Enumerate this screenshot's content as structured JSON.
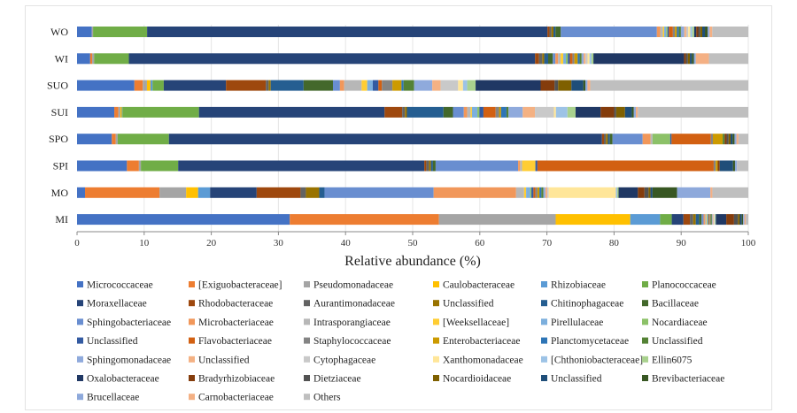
{
  "chart_data": {
    "type": "bar",
    "orientation": "horizontal",
    "stacked": true,
    "xlabel": "Relative abundance (%)",
    "xlim": [
      0,
      100
    ],
    "xticks": [
      0,
      10,
      20,
      30,
      40,
      50,
      60,
      70,
      80,
      90,
      100
    ],
    "categories": [
      "WO",
      "WI",
      "SUO",
      "SUI",
      "SPO",
      "SPI",
      "MO",
      "MI"
    ],
    "series": [
      {
        "name": "Micrococcaceae",
        "color": "#4472C4",
        "values": [
          2.2,
          2.0,
          8.2,
          5.5,
          5.3,
          7.5,
          1.2,
          32.8
        ]
      },
      {
        "name": "[Exiguobacteraceae]",
        "color": "#ED7D31",
        "values": [
          0.0,
          0.3,
          1.2,
          0.6,
          0.6,
          1.8,
          11.2,
          23.0
        ]
      },
      {
        "name": "Pseudomonadaceae",
        "color": "#A5A5A5",
        "values": [
          0.2,
          0.3,
          0.6,
          0.3,
          0.3,
          0.3,
          4.0,
          18.0
        ]
      },
      {
        "name": "Caulobacteraceae",
        "color": "#FFC000",
        "values": [
          0.0,
          0.0,
          0.5,
          0.2,
          0.0,
          0.0,
          1.8,
          11.5
        ]
      },
      {
        "name": "Rhizobiaceae",
        "color": "#5B9BD5",
        "values": [
          0.0,
          0.0,
          0.3,
          0.1,
          0.0,
          0.0,
          1.8,
          4.6
        ]
      },
      {
        "name": "Planococcaceae",
        "color": "#70AD47",
        "values": [
          8.1,
          5.3,
          1.6,
          11.3,
          7.8,
          5.6,
          0.0,
          1.8
        ]
      },
      {
        "name": "Moraxellaceae",
        "color": "#264478",
        "values": [
          60.0,
          61.9,
          8.9,
          27.4,
          66.0,
          37.0,
          7.0,
          1.8
        ]
      },
      {
        "name": "Rhodobacteraceae",
        "color": "#9E480E",
        "values": [
          0.3,
          0.6,
          5.7,
          2.6,
          0.3,
          0.3,
          6.6,
          1.0
        ]
      },
      {
        "name": "Aurantimonadaceae",
        "color": "#636363",
        "values": [
          0.3,
          0.5,
          0.4,
          0.4,
          0.3,
          0.4,
          0.8,
          0.5
        ]
      },
      {
        "name": "Unclassified",
        "color": "#997300",
        "values": [
          0.3,
          0.3,
          0.3,
          0.3,
          0.3,
          0.3,
          2.0,
          0.4
        ]
      },
      {
        "name": "Chitinophagaceae",
        "color": "#255E91",
        "values": [
          0.3,
          0.6,
          4.7,
          5.4,
          0.3,
          0.3,
          0.8,
          0.5
        ]
      },
      {
        "name": "Bacillaceae",
        "color": "#43682B",
        "values": [
          0.8,
          0.7,
          4.2,
          1.4,
          0.4,
          0.4,
          0.0,
          0.4
        ]
      },
      {
        "name": "Sphingobacteriaceae",
        "color": "#698ED0",
        "values": [
          14.4,
          0.4,
          1.0,
          1.6,
          4.6,
          12.4,
          16.4,
          0.3
        ]
      },
      {
        "name": "Microbacteriaceae",
        "color": "#F1975A",
        "values": [
          0.5,
          0.4,
          0.6,
          0.5,
          1.2,
          0.3,
          12.4,
          0.2
        ]
      },
      {
        "name": "Intrasporangiaceae",
        "color": "#B7B7B7",
        "values": [
          0.4,
          0.4,
          2.5,
          0.5,
          0.3,
          0.3,
          1.2,
          0.2
        ]
      },
      {
        "name": "[Weeksellaceae]",
        "color": "#FFCD33",
        "values": [
          0.2,
          0.4,
          0.8,
          0.2,
          0.0,
          2.0,
          0.3,
          0.1
        ]
      },
      {
        "name": "Pirellulaceae",
        "color": "#7CAFDD",
        "values": [
          0.3,
          0.4,
          0.8,
          0.8,
          0.0,
          0.0,
          0.6,
          0.1
        ]
      },
      {
        "name": "Nocardiaceae",
        "color": "#8CC168",
        "values": [
          0.2,
          0.3,
          0.0,
          0.3,
          2.7,
          0.0,
          0.2,
          0.1
        ]
      },
      {
        "name": "Unclassified",
        "color": "#335AA1",
        "values": [
          0.2,
          0.3,
          0.8,
          0.6,
          0.2,
          0.3,
          0.3,
          0.1
        ]
      },
      {
        "name": "Flavobacteriaceae",
        "color": "#D26012",
        "values": [
          0.6,
          0.4,
          0.5,
          1.8,
          6.0,
          26.5,
          0.3,
          0.1
        ]
      },
      {
        "name": "Staphylococcaceae",
        "color": "#848484",
        "values": [
          0.3,
          0.3,
          1.5,
          0.5,
          0.3,
          0.3,
          0.3,
          0.1
        ]
      },
      {
        "name": "Enterobacteriaceae",
        "color": "#CC9A00",
        "values": [
          0.3,
          0.5,
          1.3,
          0.3,
          1.5,
          0.3,
          0.3,
          0.1
        ]
      },
      {
        "name": "Planctomycetaceae",
        "color": "#2E75B6",
        "values": [
          0.3,
          0.3,
          0.3,
          0.8,
          0.0,
          0.0,
          0.3,
          0.1
        ]
      },
      {
        "name": "Unclassified",
        "color": "#548235",
        "values": [
          0.3,
          0.3,
          1.5,
          0.3,
          0.3,
          0.0,
          0.3,
          0.1
        ]
      },
      {
        "name": "Sphingomonadaceae",
        "color": "#8FAADC",
        "values": [
          0.5,
          0.3,
          2.6,
          2.1,
          0.0,
          0.0,
          0.3,
          0.1
        ]
      },
      {
        "name": "Unclassified",
        "color": "#F4B183",
        "values": [
          0.3,
          0.3,
          1.2,
          1.8,
          0.0,
          0.0,
          0.3,
          0.1
        ]
      },
      {
        "name": "Cytophagaceae",
        "color": "#C9C9C9",
        "values": [
          0.3,
          0.3,
          2.5,
          2.8,
          0.0,
          0.0,
          0.2,
          0.1
        ]
      },
      {
        "name": "Xanthomonadaceae",
        "color": "#FFE699",
        "values": [
          0.3,
          0.3,
          0.7,
          0.3,
          0.0,
          0.0,
          10.1,
          0.1
        ]
      },
      {
        "name": "[Chthoniobacteraceae]",
        "color": "#9DC3E6",
        "values": [
          0.3,
          0.3,
          0.6,
          1.7,
          0.0,
          0.0,
          0.2,
          0.1
        ]
      },
      {
        "name": "Ellin6075",
        "color": "#A9D18E",
        "values": [
          0.3,
          0.3,
          1.2,
          1.2,
          0.0,
          0.0,
          0.2,
          0.1
        ]
      },
      {
        "name": "Oxalobacteraceae",
        "color": "#203864",
        "values": [
          0.3,
          13.8,
          9.3,
          3.7,
          0.0,
          0.0,
          2.9,
          1.6
        ]
      },
      {
        "name": "Bradyrhizobiaceae",
        "color": "#843C0C",
        "values": [
          0.3,
          0.3,
          2.0,
          2.0,
          0.3,
          0.3,
          1.0,
          1.2
        ]
      },
      {
        "name": "Dietziaceae",
        "color": "#525252",
        "values": [
          0.3,
          0.3,
          0.5,
          0.3,
          0.3,
          0.0,
          0.6,
          0.6
        ]
      },
      {
        "name": "Nocardioidaceae",
        "color": "#7F6000",
        "values": [
          0.3,
          0.3,
          1.9,
          1.3,
          0.3,
          0.0,
          0.3,
          0.3
        ]
      },
      {
        "name": "Unclassified",
        "color": "#1F4E79",
        "values": [
          0.4,
          0.3,
          1.7,
          1.0,
          0.3,
          2.0,
          0.3,
          0.3
        ]
      },
      {
        "name": "Brevibacteriaceae",
        "color": "#385723",
        "values": [
          0.4,
          0.3,
          0.3,
          0.3,
          0.3,
          0.3,
          3.7,
          0.2
        ]
      },
      {
        "name": "Brucellaceae",
        "color": "#8EA9DB",
        "values": [
          0.3,
          0.3,
          0.3,
          0.3,
          0.3,
          0.3,
          5.0,
          0.2
        ]
      },
      {
        "name": "Carnobacteriaceae",
        "color": "#F4B084",
        "values": [
          0.4,
          2.0,
          0.4,
          0.3,
          0.3,
          0.0,
          0.3,
          0.2
        ]
      },
      {
        "name": "Others",
        "color": "#BFBFBF",
        "values": [
          5.4,
          6.0,
          22.6,
          16.3,
          1.5,
          1.7,
          5.4,
          0.4
        ]
      }
    ]
  }
}
